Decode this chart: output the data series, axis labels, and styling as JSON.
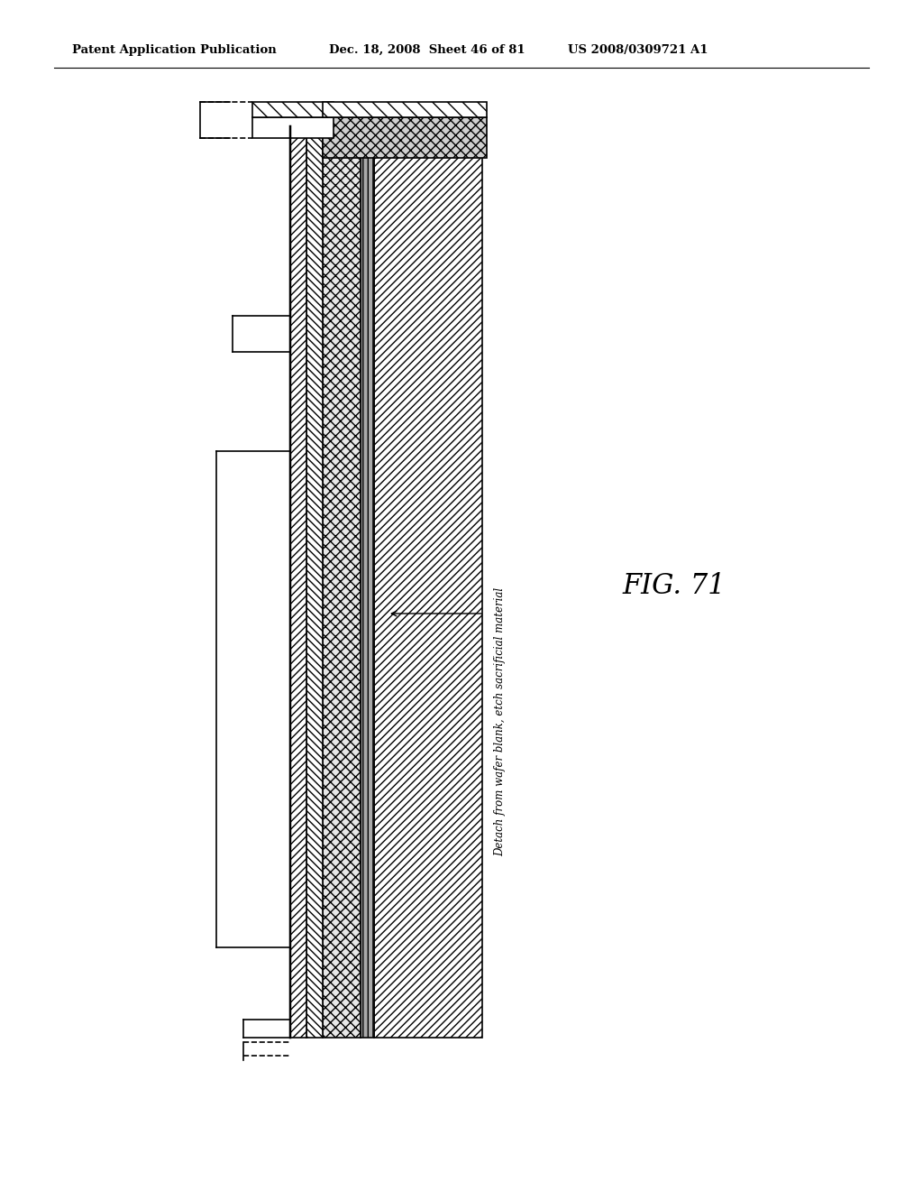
{
  "title_left": "Patent Application Publication",
  "title_mid": "Dec. 18, 2008  Sheet 46 of 81",
  "title_right": "US 2008/0309721 A1",
  "fig_label": "FIG. 71",
  "annotation": "Detach from wafer blank, etch sacrificial material",
  "bg_color": "#ffffff",
  "line_color": "#000000",
  "title_fontsize": 9.5,
  "fig_label_fontsize": 22
}
